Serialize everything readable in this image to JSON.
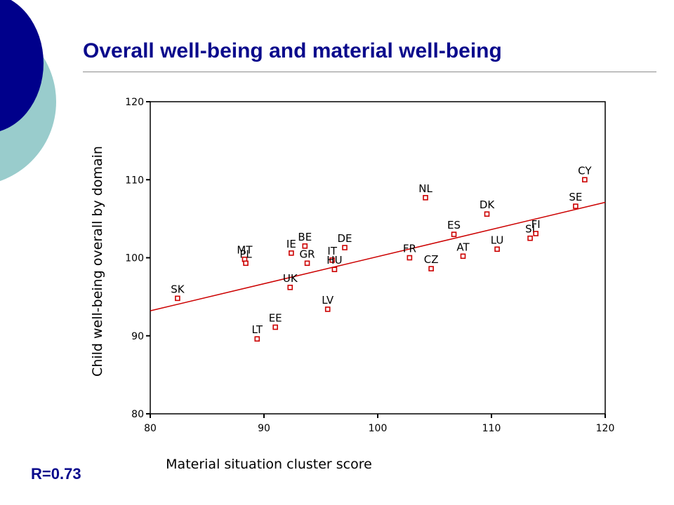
{
  "slide": {
    "title": "Overall well-being and material well-being",
    "r_value": "R=0.73"
  },
  "colors": {
    "title": "#0a0a8c",
    "decor_navy": "#00008b",
    "decor_teal": "#99cccc",
    "marker": "#cc0000",
    "fit_line": "#cc0000"
  },
  "chart_data": {
    "type": "scatter",
    "xlabel": "Material situation cluster score",
    "ylabel": "Child well-being overall by domain",
    "xlim": [
      80,
      120
    ],
    "ylim": [
      80,
      120
    ],
    "xticks": [
      80,
      90,
      100,
      110,
      120
    ],
    "yticks": [
      80,
      90,
      100,
      110,
      120
    ],
    "grid": false,
    "points": [
      {
        "label": "SK",
        "x": 82.4,
        "y": 94.8
      },
      {
        "label": "MT",
        "x": 88.3,
        "y": 99.8
      },
      {
        "label": "PL",
        "x": 88.4,
        "y": 99.3
      },
      {
        "label": "LT",
        "x": 89.4,
        "y": 89.6
      },
      {
        "label": "EE",
        "x": 91.0,
        "y": 91.1
      },
      {
        "label": "UK",
        "x": 92.3,
        "y": 96.2
      },
      {
        "label": "IE",
        "x": 92.4,
        "y": 100.6
      },
      {
        "label": "BE",
        "x": 93.6,
        "y": 101.5
      },
      {
        "label": "GR",
        "x": 93.8,
        "y": 99.3
      },
      {
        "label": "LV",
        "x": 95.6,
        "y": 93.4
      },
      {
        "label": "IT",
        "x": 96.0,
        "y": 99.7
      },
      {
        "label": "HU",
        "x": 96.2,
        "y": 98.5
      },
      {
        "label": "DE",
        "x": 97.1,
        "y": 101.3
      },
      {
        "label": "FR",
        "x": 102.8,
        "y": 100.0
      },
      {
        "label": "NL",
        "x": 104.2,
        "y": 107.7
      },
      {
        "label": "CZ",
        "x": 104.7,
        "y": 98.6
      },
      {
        "label": "ES",
        "x": 106.7,
        "y": 103.0
      },
      {
        "label": "AT",
        "x": 107.5,
        "y": 100.2
      },
      {
        "label": "DK",
        "x": 109.6,
        "y": 105.6
      },
      {
        "label": "LU",
        "x": 110.5,
        "y": 101.1
      },
      {
        "label": "SI",
        "x": 113.4,
        "y": 102.5
      },
      {
        "label": "FI",
        "x": 113.9,
        "y": 103.1
      },
      {
        "label": "SE",
        "x": 117.4,
        "y": 106.6
      },
      {
        "label": "CY",
        "x": 118.2,
        "y": 110.0
      }
    ],
    "fit_line": {
      "x": [
        80,
        120
      ],
      "y": [
        93.2,
        107.1
      ]
    }
  }
}
